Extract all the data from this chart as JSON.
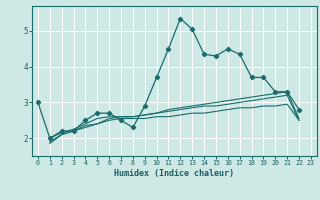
{
  "title": "",
  "xlabel": "Humidex (Indice chaleur)",
  "ylabel": "",
  "background_color": "#cde8e5",
  "grid_color": "#ffffff",
  "line_color": "#1a6b6b",
  "xlim": [
    -0.5,
    23.5
  ],
  "ylim": [
    1.5,
    5.7
  ],
  "xticks": [
    0,
    1,
    2,
    3,
    4,
    5,
    6,
    7,
    8,
    9,
    10,
    11,
    12,
    13,
    14,
    15,
    16,
    17,
    18,
    19,
    20,
    21,
    22,
    23
  ],
  "yticks": [
    2,
    3,
    4,
    5
  ],
  "series": [
    [
      3.0,
      2.0,
      2.2,
      2.2,
      2.5,
      2.7,
      2.7,
      2.5,
      2.3,
      2.9,
      3.7,
      4.5,
      5.35,
      5.05,
      4.35,
      4.3,
      4.5,
      4.35,
      3.7,
      3.7,
      3.3,
      3.3,
      2.8,
      null
    ],
    [
      null,
      1.85,
      2.1,
      2.2,
      2.3,
      2.4,
      2.5,
      2.55,
      2.55,
      2.55,
      2.6,
      2.6,
      2.65,
      2.7,
      2.7,
      2.75,
      2.8,
      2.85,
      2.85,
      2.9,
      2.9,
      2.95,
      2.5,
      null
    ],
    [
      null,
      1.9,
      2.1,
      2.2,
      2.35,
      2.4,
      2.55,
      2.6,
      2.6,
      2.65,
      2.7,
      2.75,
      2.8,
      2.85,
      2.9,
      2.9,
      2.95,
      3.0,
      3.05,
      3.1,
      3.15,
      3.2,
      2.5,
      null
    ],
    [
      null,
      2.0,
      2.15,
      2.25,
      2.4,
      2.55,
      2.6,
      2.6,
      2.6,
      2.65,
      2.7,
      2.8,
      2.85,
      2.9,
      2.95,
      3.0,
      3.05,
      3.1,
      3.15,
      3.2,
      3.25,
      3.3,
      2.55,
      null
    ]
  ]
}
